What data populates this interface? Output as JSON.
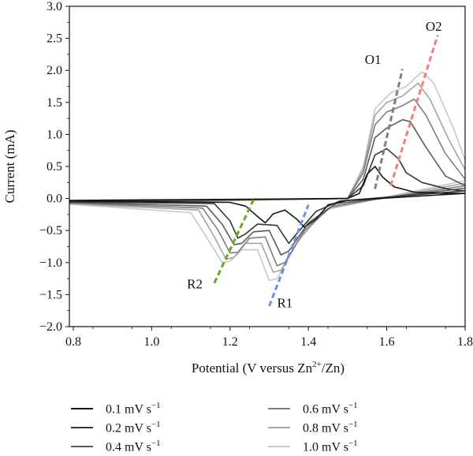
{
  "chart_data": {
    "type": "line",
    "xlabel_main": "Potential (V versus Zn",
    "xlabel_sup": "2+",
    "xlabel_tail": "/Zn)",
    "ylabel": "Current (mA)",
    "xlim": [
      0.79,
      1.8
    ],
    "ylim": [
      -2.0,
      3.0
    ],
    "x_ticks": [
      0.8,
      1.0,
      1.2,
      1.4,
      1.6,
      1.8
    ],
    "x_tick_labels": [
      "0.8",
      "1.0",
      "1.2",
      "1.4",
      "1.6",
      "1.8"
    ],
    "y_ticks": [
      -2.0,
      -1.5,
      -1.0,
      -0.5,
      0.0,
      0.5,
      1.0,
      1.5,
      2.0,
      2.5,
      3.0
    ],
    "y_tick_labels": [
      "−2.0",
      "−1.5",
      "−1.0",
      "−0.5",
      "0.0",
      "0.5",
      "1.0",
      "1.5",
      "2.0",
      "2.5",
      "3.0"
    ],
    "series": [
      {
        "name": "0.1 mV s",
        "color": "#141414",
        "reduction": [
          [
            0.79,
            -0.04
          ],
          [
            1.2,
            -0.06
          ],
          [
            1.24,
            -0.12
          ],
          [
            1.27,
            -0.28
          ],
          [
            1.29,
            -0.38
          ],
          [
            1.31,
            -0.24
          ],
          [
            1.34,
            -0.18
          ],
          [
            1.37,
            -0.32
          ],
          [
            1.39,
            -0.45
          ],
          [
            1.42,
            -0.32
          ],
          [
            1.45,
            -0.1
          ],
          [
            1.5,
            -0.03
          ],
          [
            1.8,
            0.08
          ]
        ],
        "oxidation": [
          [
            0.79,
            -0.03
          ],
          [
            1.5,
            0.0
          ],
          [
            1.53,
            0.08
          ],
          [
            1.55,
            0.38
          ],
          [
            1.57,
            0.5
          ],
          [
            1.59,
            0.33
          ],
          [
            1.62,
            0.18
          ],
          [
            1.67,
            0.1
          ],
          [
            1.75,
            0.08
          ],
          [
            1.8,
            0.08
          ]
        ]
      },
      {
        "name": "0.2 mV s",
        "color": "#363636",
        "reduction": [
          [
            0.79,
            -0.05
          ],
          [
            1.16,
            -0.08
          ],
          [
            1.2,
            -0.35
          ],
          [
            1.22,
            -0.62
          ],
          [
            1.24,
            -0.55
          ],
          [
            1.27,
            -0.4
          ],
          [
            1.32,
            -0.42
          ],
          [
            1.35,
            -0.7
          ],
          [
            1.37,
            -0.55
          ],
          [
            1.42,
            -0.2
          ],
          [
            1.48,
            -0.04
          ],
          [
            1.8,
            0.12
          ]
        ],
        "oxidation": [
          [
            0.79,
            -0.04
          ],
          [
            1.5,
            0.0
          ],
          [
            1.54,
            0.2
          ],
          [
            1.57,
            0.68
          ],
          [
            1.6,
            0.78
          ],
          [
            1.63,
            0.62
          ],
          [
            1.65,
            0.4
          ],
          [
            1.69,
            0.25
          ],
          [
            1.76,
            0.14
          ],
          [
            1.8,
            0.12
          ]
        ]
      },
      {
        "name": "0.4 mV s",
        "color": "#5a5a5a",
        "reduction": [
          [
            0.79,
            -0.06
          ],
          [
            1.14,
            -0.12
          ],
          [
            1.18,
            -0.4
          ],
          [
            1.21,
            -0.72
          ],
          [
            1.23,
            -0.7
          ],
          [
            1.26,
            -0.52
          ],
          [
            1.3,
            -0.5
          ],
          [
            1.33,
            -0.88
          ],
          [
            1.35,
            -0.82
          ],
          [
            1.4,
            -0.38
          ],
          [
            1.47,
            -0.08
          ],
          [
            1.8,
            0.16
          ]
        ],
        "oxidation": [
          [
            0.79,
            -0.05
          ],
          [
            1.5,
            0.0
          ],
          [
            1.54,
            0.3
          ],
          [
            1.57,
            0.95
          ],
          [
            1.6,
            1.1
          ],
          [
            1.64,
            1.23
          ],
          [
            1.66,
            1.2
          ],
          [
            1.7,
            0.8
          ],
          [
            1.75,
            0.35
          ],
          [
            1.8,
            0.2
          ]
        ]
      },
      {
        "name": "0.6 mV s",
        "color": "#7e7e7e",
        "reduction": [
          [
            0.79,
            -0.07
          ],
          [
            1.13,
            -0.15
          ],
          [
            1.17,
            -0.5
          ],
          [
            1.2,
            -0.85
          ],
          [
            1.22,
            -0.84
          ],
          [
            1.25,
            -0.62
          ],
          [
            1.29,
            -0.6
          ],
          [
            1.32,
            -1.05
          ],
          [
            1.34,
            -1.0
          ],
          [
            1.39,
            -0.5
          ],
          [
            1.46,
            -0.12
          ],
          [
            1.8,
            0.2
          ]
        ],
        "oxidation": [
          [
            0.79,
            -0.06
          ],
          [
            1.5,
            0.0
          ],
          [
            1.54,
            0.4
          ],
          [
            1.57,
            1.15
          ],
          [
            1.6,
            1.35
          ],
          [
            1.64,
            1.45
          ],
          [
            1.67,
            1.55
          ],
          [
            1.7,
            1.3
          ],
          [
            1.75,
            0.7
          ],
          [
            1.8,
            0.3
          ]
        ]
      },
      {
        "name": "0.8 mV s",
        "color": "#a4a4a4",
        "reduction": [
          [
            0.79,
            -0.08
          ],
          [
            1.12,
            -0.18
          ],
          [
            1.16,
            -0.6
          ],
          [
            1.19,
            -0.95
          ],
          [
            1.21,
            -0.92
          ],
          [
            1.24,
            -0.7
          ],
          [
            1.28,
            -0.7
          ],
          [
            1.31,
            -1.15
          ],
          [
            1.33,
            -1.12
          ],
          [
            1.38,
            -0.6
          ],
          [
            1.45,
            -0.15
          ],
          [
            1.8,
            0.24
          ]
        ],
        "oxidation": [
          [
            0.79,
            -0.07
          ],
          [
            1.5,
            0.0
          ],
          [
            1.54,
            0.45
          ],
          [
            1.57,
            1.3
          ],
          [
            1.6,
            1.5
          ],
          [
            1.64,
            1.6
          ],
          [
            1.68,
            1.8
          ],
          [
            1.71,
            1.55
          ],
          [
            1.76,
            0.9
          ],
          [
            1.8,
            0.45
          ]
        ]
      },
      {
        "name": "1.0 mV s",
        "color": "#c8c8c8",
        "reduction": [
          [
            0.79,
            -0.09
          ],
          [
            1.1,
            -0.22
          ],
          [
            1.15,
            -0.7
          ],
          [
            1.18,
            -1.0
          ],
          [
            1.2,
            -0.98
          ],
          [
            1.23,
            -0.8
          ],
          [
            1.27,
            -0.8
          ],
          [
            1.3,
            -1.28
          ],
          [
            1.32,
            -1.25
          ],
          [
            1.37,
            -0.7
          ],
          [
            1.44,
            -0.18
          ],
          [
            1.8,
            0.28
          ]
        ],
        "oxidation": [
          [
            0.79,
            -0.08
          ],
          [
            1.5,
            0.0
          ],
          [
            1.54,
            0.5
          ],
          [
            1.57,
            1.4
          ],
          [
            1.61,
            1.65
          ],
          [
            1.65,
            1.75
          ],
          [
            1.69,
            1.98
          ],
          [
            1.72,
            1.8
          ],
          [
            1.77,
            1.1
          ],
          [
            1.8,
            0.6
          ]
        ]
      }
    ],
    "guides": [
      {
        "label": "O1",
        "color": "#7f7f7f",
        "from": [
          1.57,
          0.15
        ],
        "to": [
          1.64,
          2.02
        ]
      },
      {
        "label": "O2",
        "color": "#f08080",
        "from": [
          1.61,
          0.2
        ],
        "to": [
          1.73,
          2.55
        ]
      },
      {
        "label": "R1",
        "color": "#6f8ee8",
        "from": [
          1.3,
          -1.68
        ],
        "to": [
          1.4,
          -0.1
        ]
      },
      {
        "label": "R2",
        "color": "#6aa625",
        "from": [
          1.16,
          -1.32
        ],
        "to": [
          1.26,
          -0.02
        ]
      }
    ],
    "legend_position": "bottom",
    "grid": false
  },
  "legend": {
    "unit_sup": "−1",
    "items": [
      "0.1 mV s",
      "0.2 mV s",
      "0.4 mV s",
      "0.6 mV s",
      "0.8 mV s",
      "1.0 mV s"
    ]
  }
}
